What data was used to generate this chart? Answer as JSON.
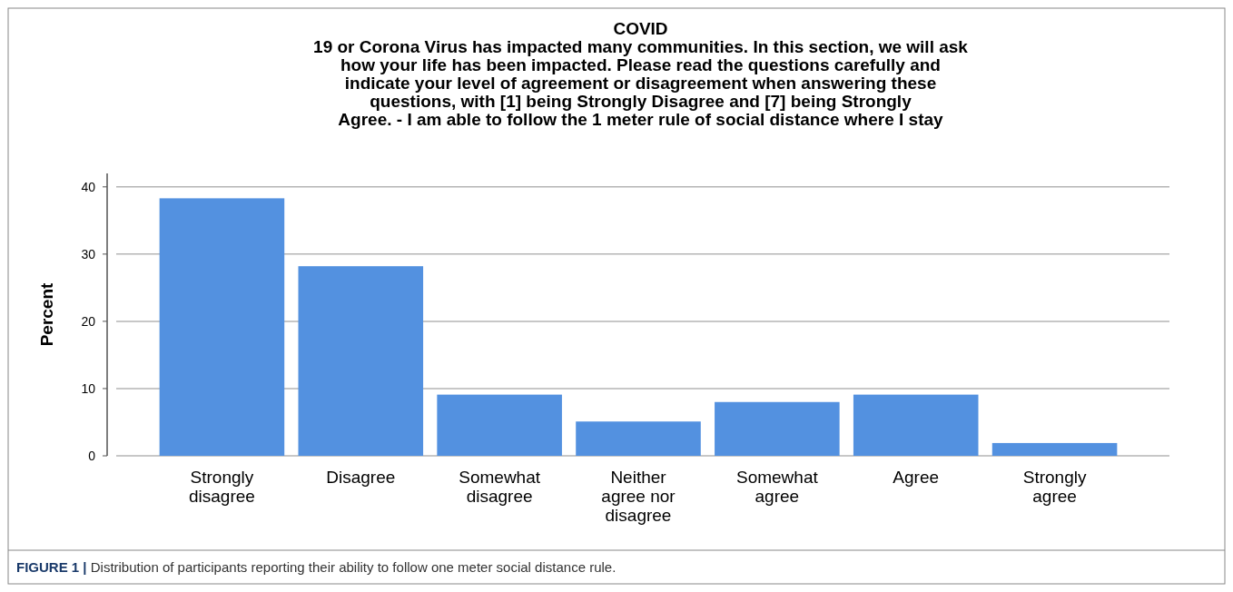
{
  "chart_data": {
    "type": "bar",
    "title": "COVID\n19 or Corona Virus has impacted many communities. In this section, we will ask\nhow your life has been impacted. Please read the questions carefully and\nindicate your level of agreement or disagreement when answering these\nquestions, with [1] being Strongly Disagree and [7] being Strongly\nAgree. - I am able to follow the 1 meter rule of social distance where I stay",
    "ylabel": "Percent",
    "categories": [
      "Strongly disagree",
      "Disagree",
      "Somewhat disagree",
      "Neither agree nor disagree",
      "Somewhat agree",
      "Agree",
      "Strongly agree"
    ],
    "values": [
      38.3,
      28.2,
      9.1,
      5.1,
      8.0,
      9.1,
      1.9
    ],
    "color": "#5391e0",
    "ylim": [
      0,
      42
    ],
    "yticks": [
      0,
      10,
      20,
      30,
      40
    ],
    "grid": "y",
    "annotations": [
      "FIGURE 1 | Distribution of participants reporting their ability to follow one meter social distance rule."
    ]
  }
}
